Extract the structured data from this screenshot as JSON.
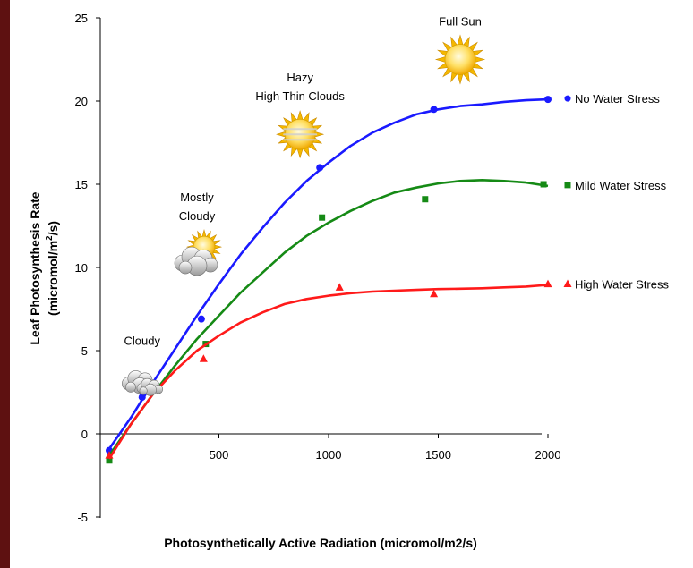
{
  "chart_data": {
    "type": "scatter",
    "title": "",
    "xlabel": "Photosynthetically Active Radiation (micromol/m2/s)",
    "ylabel": "Leaf Photosynthesis Rate",
    "ylabel_unit_prefix": "(micromol/m",
    "ylabel_unit_sup": "2",
    "ylabel_unit_suffix": "/s)",
    "xlim": [
      0,
      2000
    ],
    "ylim": [
      -5,
      25
    ],
    "x_ticks": [
      "500",
      "1000",
      "1500",
      "2000"
    ],
    "y_ticks": [
      "-5",
      "0",
      "5",
      "10",
      "15",
      "20",
      "25"
    ],
    "grid": false,
    "legend_position": "right",
    "series": [
      {
        "name": "No Water Stress",
        "color": "#1a1aff",
        "marker": "circle",
        "points": [
          [
            0,
            -1
          ],
          [
            150,
            2.2
          ],
          [
            420,
            6.9
          ],
          [
            960,
            16.0
          ],
          [
            1480,
            19.5
          ],
          [
            2000,
            20.1
          ]
        ],
        "curve": [
          [
            0,
            -0.9
          ],
          [
            100,
            1.0
          ],
          [
            200,
            3.1
          ],
          [
            300,
            5.1
          ],
          [
            400,
            7.1
          ],
          [
            500,
            9.0
          ],
          [
            600,
            10.8
          ],
          [
            700,
            12.4
          ],
          [
            800,
            13.9
          ],
          [
            900,
            15.2
          ],
          [
            1000,
            16.3
          ],
          [
            1100,
            17.3
          ],
          [
            1200,
            18.1
          ],
          [
            1300,
            18.7
          ],
          [
            1400,
            19.2
          ],
          [
            1500,
            19.5
          ],
          [
            1600,
            19.7
          ],
          [
            1700,
            19.8
          ],
          [
            1800,
            19.95
          ],
          [
            1900,
            20.05
          ],
          [
            2000,
            20.1
          ]
        ]
      },
      {
        "name": "Mild Water Stress",
        "color": "#158a15",
        "marker": "square",
        "points": [
          [
            0,
            -1.6
          ],
          [
            440,
            5.4
          ],
          [
            970,
            13.0
          ],
          [
            1440,
            14.1
          ],
          [
            1980,
            15.0
          ]
        ],
        "curve": [
          [
            0,
            -1.3
          ],
          [
            100,
            0.6
          ],
          [
            200,
            2.4
          ],
          [
            300,
            4.1
          ],
          [
            400,
            5.7
          ],
          [
            500,
            7.1
          ],
          [
            600,
            8.5
          ],
          [
            700,
            9.7
          ],
          [
            800,
            10.9
          ],
          [
            900,
            11.9
          ],
          [
            1000,
            12.7
          ],
          [
            1100,
            13.4
          ],
          [
            1200,
            14.0
          ],
          [
            1300,
            14.5
          ],
          [
            1400,
            14.8
          ],
          [
            1500,
            15.05
          ],
          [
            1600,
            15.2
          ],
          [
            1700,
            15.25
          ],
          [
            1800,
            15.2
          ],
          [
            1900,
            15.1
          ],
          [
            2000,
            14.9
          ]
        ]
      },
      {
        "name": "High Water Stress",
        "color": "#ff1a1a",
        "marker": "triangle",
        "points": [
          [
            0,
            -1.3
          ],
          [
            430,
            4.5
          ],
          [
            1050,
            8.8
          ],
          [
            1480,
            8.4
          ],
          [
            2000,
            9.0
          ]
        ],
        "curve": [
          [
            0,
            -1.5
          ],
          [
            100,
            0.6
          ],
          [
            200,
            2.4
          ],
          [
            300,
            3.8
          ],
          [
            400,
            5.0
          ],
          [
            500,
            5.9
          ],
          [
            600,
            6.7
          ],
          [
            700,
            7.3
          ],
          [
            800,
            7.8
          ],
          [
            900,
            8.1
          ],
          [
            1000,
            8.3
          ],
          [
            1100,
            8.45
          ],
          [
            1200,
            8.55
          ],
          [
            1300,
            8.6
          ],
          [
            1400,
            8.65
          ],
          [
            1500,
            8.7
          ],
          [
            1600,
            8.72
          ],
          [
            1700,
            8.75
          ],
          [
            1800,
            8.8
          ],
          [
            1900,
            8.85
          ],
          [
            2000,
            8.95
          ]
        ]
      }
    ],
    "annotations": [
      {
        "lines": [
          "Cloudy"
        ],
        "icon": "cloudy-icon",
        "x": 150,
        "y": 3.3
      },
      {
        "lines": [
          "Mostly",
          "Cloudy"
        ],
        "icon": "mostly-cloudy-icon",
        "x": 400,
        "y": 10.8
      },
      {
        "lines": [
          "Hazy",
          "High Thin Clouds"
        ],
        "icon": "hazy-sun-icon",
        "x": 870,
        "y": 18.0
      },
      {
        "lines": [
          "Full Sun"
        ],
        "icon": "sun-icon",
        "x": 1600,
        "y": 22.5
      }
    ]
  }
}
